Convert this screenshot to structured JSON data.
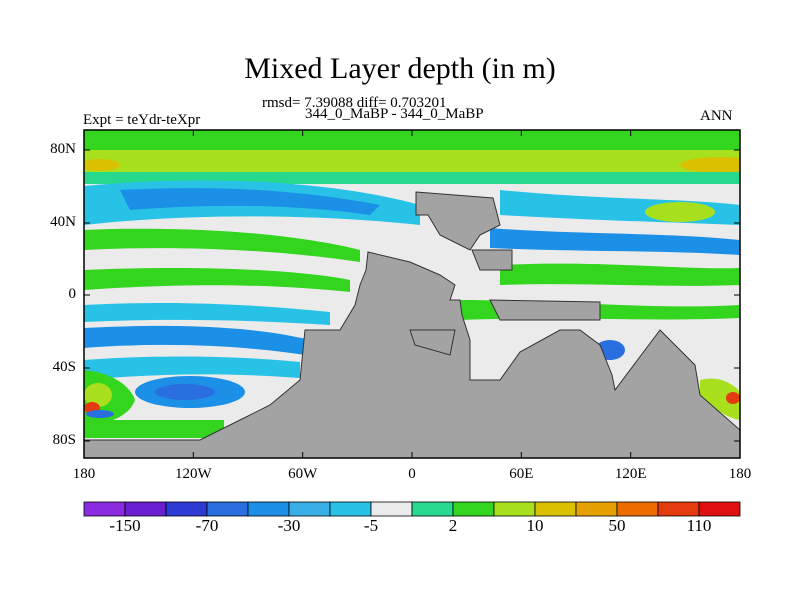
{
  "title": "Mixed Layer depth (in m)",
  "stats_line": "rmsd= 7.39088 diff= 0.703201",
  "case_line": "344_0_MaBP - 344_0_MaBP",
  "left_label": "Expt = teYdr-teXpr",
  "right_label": "ANN",
  "y_ticks": [
    "80N",
    "40N",
    "0",
    "40S",
    "80S"
  ],
  "x_ticks": [
    "180",
    "120W",
    "60W",
    "0",
    "60E",
    "120E",
    "180"
  ],
  "colorbar": {
    "colors": [
      "#8a2be2",
      "#6a1fd0",
      "#2d3bd4",
      "#2a6fe0",
      "#1c8fe6",
      "#3aaee6",
      "#27c2e6",
      "#ebebeb",
      "#27d98c",
      "#33d51f",
      "#a8e01e",
      "#d9c000",
      "#e6a000",
      "#ec6c00",
      "#e43a10",
      "#e01010"
    ],
    "labels": [
      "-150",
      "-70",
      "-30",
      "-5",
      "2",
      "10",
      "50",
      "110"
    ]
  },
  "colors": {
    "land": "#a3a3a3",
    "frame": "#000000"
  }
}
